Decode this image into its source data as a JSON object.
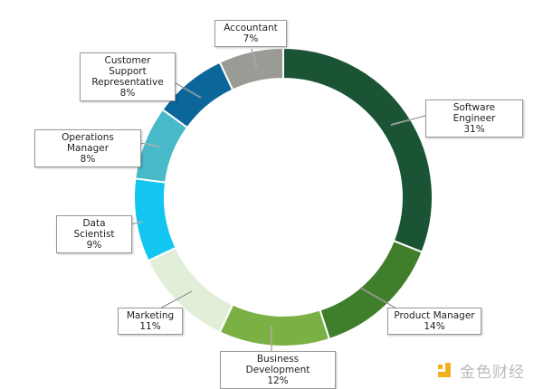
{
  "chart_data": {
    "type": "pie",
    "donut": true,
    "categories": [
      "Software Engineer",
      "Product Manager",
      "Business Development",
      "Marketing",
      "Data Scientist",
      "Operations Manager",
      "Customer Support Representative",
      "Accountant"
    ],
    "values": [
      31,
      14,
      12,
      11,
      9,
      8,
      8,
      7
    ],
    "labels": [
      "31%",
      "14%",
      "12%",
      "11%",
      "9%",
      "8%",
      "8%",
      "7%"
    ],
    "colors": [
      "#1b5434",
      "#3f7e2b",
      "#7bb044",
      "#e2efd8",
      "#12c6f0",
      "#47b9c9",
      "#0b6699",
      "#9a9b95"
    ],
    "title": ""
  },
  "watermark": {
    "text": "金色财经"
  }
}
